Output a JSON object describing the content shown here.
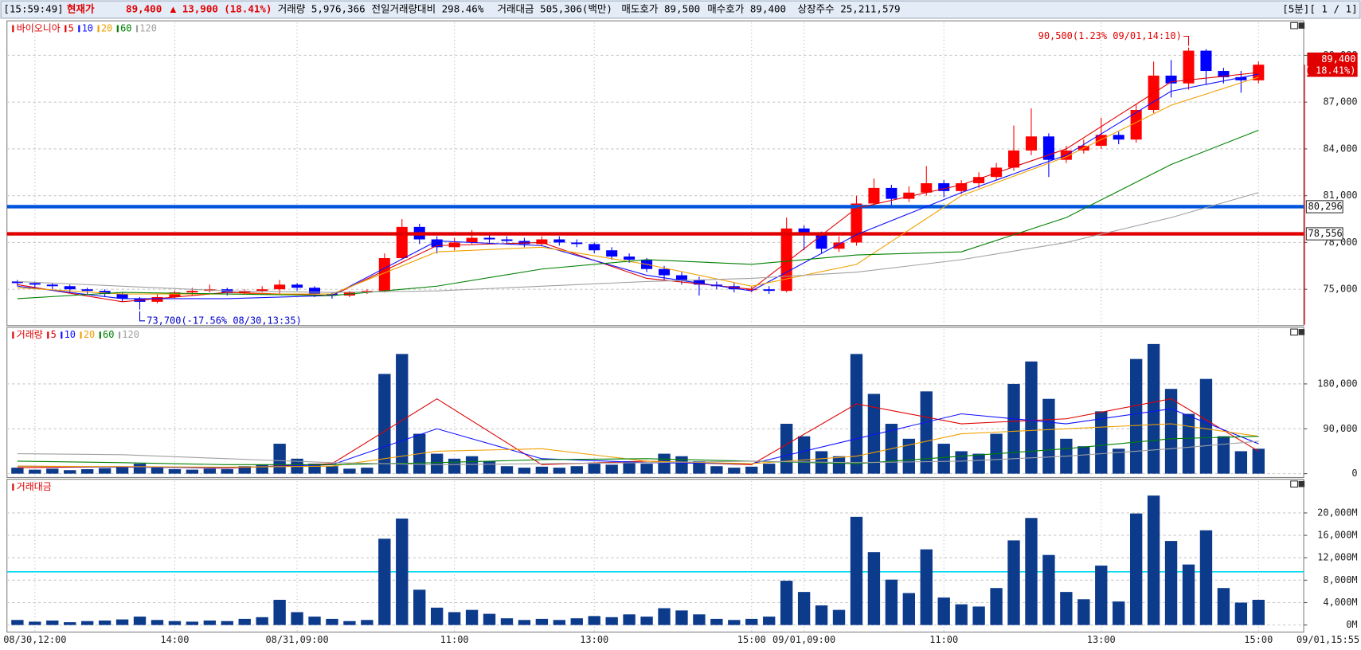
{
  "header": {
    "time": "[15:59:49]",
    "price_label": "현재가",
    "price": "89,400",
    "change": "▲ 13,900",
    "change_pct": "(18.41%)",
    "volume": "거래량 5,976,366",
    "volume_ratio": "전일거래량대비 298.46%",
    "amount": "거래대금 505,306(백만)",
    "ask": "매도호가 89,500",
    "bid": "매수호가 89,400",
    "shares": "상장주수 25,211,579",
    "period": "[5분][ 1 / 1]"
  },
  "chart_data": [
    {
      "type": "candlestick",
      "title": "바이오니아",
      "up_color": "#ff0000",
      "down_color": "#0000ff",
      "ohlc": [
        [
          75500,
          75600,
          75200,
          75400
        ],
        [
          75400,
          75500,
          75100,
          75300
        ],
        [
          75300,
          75400,
          75000,
          75200
        ],
        [
          75200,
          75300,
          74800,
          75000
        ],
        [
          75000,
          75100,
          74700,
          74900
        ],
        [
          74900,
          75000,
          74500,
          74700
        ],
        [
          74700,
          74800,
          74200,
          74400
        ],
        [
          74400,
          74500,
          73700,
          74200
        ],
        [
          74200,
          74700,
          74100,
          74500
        ],
        [
          74500,
          74900,
          74400,
          74800
        ],
        [
          74800,
          75100,
          74600,
          74900
        ],
        [
          74900,
          75300,
          74800,
          75000
        ],
        [
          75000,
          75100,
          74600,
          74800
        ],
        [
          74800,
          75000,
          74700,
          74900
        ],
        [
          74900,
          75200,
          74800,
          75000
        ],
        [
          75000,
          75600,
          74700,
          75300
        ],
        [
          75300,
          75400,
          74900,
          75100
        ],
        [
          75100,
          75200,
          74500,
          74700
        ],
        [
          74700,
          74800,
          74400,
          74600
        ],
        [
          74600,
          74900,
          74500,
          74800
        ],
        [
          74800,
          75000,
          74700,
          74900
        ],
        [
          74900,
          77300,
          74800,
          77000
        ],
        [
          77000,
          79500,
          76900,
          79000
        ],
        [
          79000,
          79200,
          77900,
          78200
        ],
        [
          78200,
          78400,
          77300,
          77700
        ],
        [
          77700,
          78300,
          77500,
          78000
        ],
        [
          78000,
          78800,
          77900,
          78300
        ],
        [
          78300,
          78500,
          77900,
          78200
        ],
        [
          78200,
          78400,
          77900,
          78100
        ],
        [
          78100,
          78300,
          77700,
          77900
        ],
        [
          77900,
          78400,
          77800,
          78200
        ],
        [
          78200,
          78400,
          77800,
          78000
        ],
        [
          78000,
          78200,
          77700,
          77900
        ],
        [
          77900,
          78000,
          77300,
          77500
        ],
        [
          77500,
          77700,
          76900,
          77100
        ],
        [
          77100,
          77300,
          76700,
          76900
        ],
        [
          76900,
          77000,
          76100,
          76300
        ],
        [
          76300,
          76500,
          75600,
          75900
        ],
        [
          75900,
          76100,
          75300,
          75600
        ],
        [
          75600,
          75800,
          74600,
          75300
        ],
        [
          75300,
          75500,
          75000,
          75200
        ],
        [
          75200,
          75400,
          74800,
          75000
        ],
        [
          75000,
          75200,
          74800,
          75000
        ],
        [
          75000,
          75200,
          74700,
          74900
        ],
        [
          74900,
          79600,
          74800,
          78900
        ],
        [
          78900,
          79100,
          77500,
          78500
        ],
        [
          78500,
          78700,
          77300,
          77600
        ],
        [
          77600,
          78400,
          77400,
          78000
        ],
        [
          78000,
          81000,
          77800,
          80500
        ],
        [
          80500,
          82100,
          80300,
          81500
        ],
        [
          81500,
          81700,
          80400,
          80800
        ],
        [
          80800,
          81600,
          80600,
          81200
        ],
        [
          81200,
          82900,
          81000,
          81800
        ],
        [
          81800,
          82000,
          80900,
          81300
        ],
        [
          81300,
          82000,
          81100,
          81800
        ],
        [
          81800,
          82500,
          81500,
          82200
        ],
        [
          82200,
          83100,
          82000,
          82800
        ],
        [
          82800,
          85500,
          82600,
          83900
        ],
        [
          83900,
          86600,
          83600,
          84800
        ],
        [
          84800,
          85000,
          82200,
          83300
        ],
        [
          83300,
          84200,
          83100,
          83900
        ],
        [
          83900,
          84600,
          83700,
          84200
        ],
        [
          84200,
          86000,
          84000,
          84900
        ],
        [
          84900,
          85100,
          84300,
          84600
        ],
        [
          84600,
          86900,
          84400,
          86500
        ],
        [
          86500,
          89600,
          86300,
          88700
        ],
        [
          88700,
          89700,
          87300,
          88200
        ],
        [
          88200,
          90500,
          87800,
          90300
        ],
        [
          90300,
          90400,
          88100,
          89000
        ],
        [
          89000,
          89200,
          88200,
          88600
        ],
        [
          88600,
          89000,
          87600,
          88400
        ],
        [
          88400,
          89600,
          88200,
          89400
        ]
      ],
      "ylim": [
        72730,
        92100
      ],
      "yticks": [
        {
          "value": 75000,
          "label": "75,000"
        },
        {
          "value": 78000,
          "label": "78,000"
        },
        {
          "value": 81000,
          "label": "81,000"
        },
        {
          "value": 84000,
          "label": "84,000"
        },
        {
          "value": 87000,
          "label": "87,000"
        },
        {
          "value": 90000,
          "label": "90,000"
        }
      ],
      "grid": true,
      "series": [
        {
          "name": "5",
          "color": "#e00000",
          "x": [
            0,
            6,
            12,
            18,
            24,
            30,
            36,
            42,
            48,
            54,
            60,
            66,
            71
          ],
          "values": [
            75300,
            74200,
            74800,
            74600,
            77800,
            78000,
            75700,
            75000,
            80200,
            81700,
            84000,
            88300,
            88900
          ]
        },
        {
          "name": "10",
          "color": "#1010ff",
          "x": [
            0,
            6,
            12,
            18,
            24,
            30,
            36,
            42,
            48,
            54,
            60,
            66,
            71
          ],
          "values": [
            75200,
            74400,
            74400,
            74600,
            78100,
            77800,
            75900,
            74900,
            78500,
            81200,
            83600,
            87700,
            88800
          ]
        },
        {
          "name": "20",
          "color": "#f0a000",
          "x": [
            0,
            6,
            12,
            18,
            24,
            30,
            36,
            42,
            48,
            54,
            60,
            66,
            71
          ],
          "values": [
            75100,
            74700,
            74700,
            74700,
            77400,
            77700,
            76600,
            75200,
            76600,
            81000,
            83500,
            86800,
            88600
          ]
        },
        {
          "name": "60",
          "color": "#008000",
          "x": [
            0,
            6,
            12,
            18,
            24,
            30,
            36,
            42,
            48,
            54,
            60,
            66,
            71
          ],
          "values": [
            74400,
            74800,
            74700,
            74600,
            75200,
            76300,
            76900,
            76600,
            77200,
            77400,
            79600,
            83000,
            85200
          ]
        },
        {
          "name": "120",
          "color": "#a0a0a0",
          "x": [
            0,
            6,
            12,
            18,
            24,
            30,
            36,
            42,
            48,
            54,
            60,
            66,
            71
          ],
          "values": [
            75500,
            75200,
            74900,
            74800,
            74900,
            75200,
            75500,
            75700,
            76100,
            76900,
            78000,
            79600,
            81200
          ]
        }
      ],
      "levels": [
        {
          "value": 80296,
          "label": "80,296",
          "color": "#0055dd"
        },
        {
          "value": 78556,
          "label": "78,556",
          "color": "#e00000"
        }
      ],
      "annotations": [
        {
          "text": "90,500(1.23% 09/01,14:10)",
          "x": 67
        },
        {
          "text": "73,700(-17.56% 08/30,13:35)",
          "x": 7
        }
      ],
      "last": {
        "value": 89400,
        "label": "89,400",
        "change": "( 18.41%)"
      }
    },
    {
      "type": "bar",
      "title": "거래량",
      "color": "#0d3b8c",
      "values": [
        12000,
        8000,
        10000,
        7000,
        9000,
        11000,
        14000,
        20000,
        12000,
        9000,
        8000,
        10000,
        9000,
        15000,
        18000,
        60000,
        30000,
        20000,
        15000,
        10000,
        12000,
        200000,
        240000,
        80000,
        40000,
        30000,
        35000,
        25000,
        15000,
        12000,
        14000,
        12000,
        15000,
        20000,
        18000,
        25000,
        20000,
        40000,
        35000,
        25000,
        15000,
        12000,
        14000,
        20000,
        100000,
        75000,
        45000,
        35000,
        240000,
        160000,
        100000,
        70000,
        165000,
        60000,
        45000,
        40000,
        80000,
        180000,
        225000,
        150000,
        70000,
        55000,
        125000,
        50000,
        230000,
        260000,
        170000,
        120000,
        190000,
        75000,
        45000,
        50000
      ],
      "ylim": [
        -6000,
        290000
      ],
      "yticks": [
        0,
        {
          "value": 90000,
          "label": "90,000"
        },
        {
          "value": 180000,
          "label": "180,000"
        }
      ],
      "grid": true,
      "series": [
        {
          "name": "5",
          "color": "#e00000",
          "x": [
            0,
            6,
            12,
            18,
            24,
            30,
            36,
            42,
            48,
            54,
            60,
            66,
            71
          ],
          "values": [
            12000,
            14000,
            11000,
            20000,
            150000,
            18000,
            25000,
            18000,
            140000,
            100000,
            110000,
            150000,
            45000
          ]
        },
        {
          "name": "10",
          "color": "#1010ff",
          "x": [
            0,
            6,
            12,
            18,
            24,
            30,
            36,
            42,
            48,
            54,
            60,
            66,
            71
          ],
          "values": [
            15000,
            13000,
            12000,
            18000,
            90000,
            30000,
            22000,
            20000,
            70000,
            120000,
            100000,
            130000,
            60000
          ]
        },
        {
          "name": "20",
          "color": "#f0a000",
          "x": [
            0,
            6,
            12,
            18,
            24,
            30,
            36,
            42,
            48,
            54,
            60,
            66,
            71
          ],
          "values": [
            15000,
            14000,
            13000,
            15000,
            45000,
            50000,
            25000,
            20000,
            35000,
            80000,
            90000,
            100000,
            75000
          ]
        },
        {
          "name": "60",
          "color": "#008000",
          "x": [
            0,
            6,
            12,
            18,
            24,
            30,
            36,
            42,
            48,
            54,
            60,
            66,
            71
          ],
          "values": [
            25000,
            22000,
            18000,
            18000,
            22000,
            28000,
            30000,
            25000,
            20000,
            35000,
            50000,
            70000,
            75000
          ]
        },
        {
          "name": "120",
          "color": "#a0a0a0",
          "x": [
            0,
            6,
            12,
            18,
            24,
            30,
            36,
            42,
            48,
            54,
            60,
            66,
            71
          ],
          "values": [
            40000,
            38000,
            30000,
            22000,
            18000,
            20000,
            22000,
            25000,
            22000,
            25000,
            35000,
            50000,
            65000
          ]
        }
      ]
    },
    {
      "type": "bar",
      "title": "거래대금",
      "color": "#0d3b8c",
      "categories": [
        null,
        "08/30,12:00",
        null,
        null,
        null,
        null,
        null,
        null,
        null,
        "14:00",
        null,
        null,
        null,
        null,
        null,
        null,
        "08/31,09:00",
        null,
        null,
        null,
        null,
        null,
        null,
        null,
        null,
        "11:00",
        null,
        null,
        null,
        null,
        null,
        null,
        null,
        "13:00",
        null,
        null,
        null,
        null,
        null,
        null,
        null,
        null,
        "15:00",
        null,
        null,
        "09/01,09:00",
        null,
        null,
        null,
        null,
        null,
        null,
        null,
        "11:00",
        null,
        null,
        null,
        null,
        null,
        null,
        null,
        null,
        "13:00",
        null,
        null,
        null,
        null,
        null,
        null,
        null,
        null,
        "15:00"
      ],
      "x_end_label": "09/01,15:55",
      "values": [
        900,
        600,
        800,
        500,
        700,
        800,
        1000,
        1500,
        900,
        700,
        600,
        800,
        700,
        1100,
        1400,
        4500,
        2300,
        1500,
        1100,
        700,
        900,
        15400,
        19000,
        6300,
        3100,
        2300,
        2700,
        2000,
        1200,
        900,
        1100,
        900,
        1200,
        1600,
        1400,
        1900,
        1500,
        3000,
        2600,
        1900,
        1100,
        900,
        1100,
        1500,
        7900,
        5900,
        3500,
        2700,
        19300,
        13000,
        8100,
        5700,
        13500,
        4900,
        3700,
        3300,
        6600,
        15100,
        19100,
        12500,
        5900,
        4600,
        10600,
        4200,
        19900,
        23100,
        15000,
        10800,
        16900,
        6600,
        4000,
        4500
      ],
      "ylim": [
        -1100,
        25700
      ],
      "yticks": [
        {
          "value": 0,
          "label": "0M"
        },
        {
          "value": 4000,
          "label": "4,000M"
        },
        {
          "value": 8000,
          "label": "8,000M"
        },
        {
          "value": 12000,
          "label": "12,000M"
        },
        {
          "value": 16000,
          "label": "16,000M"
        },
        {
          "value": 20000,
          "label": "20,000M"
        }
      ],
      "grid": true,
      "reference_line": {
        "value": 9500,
        "color": "#00d8ee"
      }
    }
  ]
}
